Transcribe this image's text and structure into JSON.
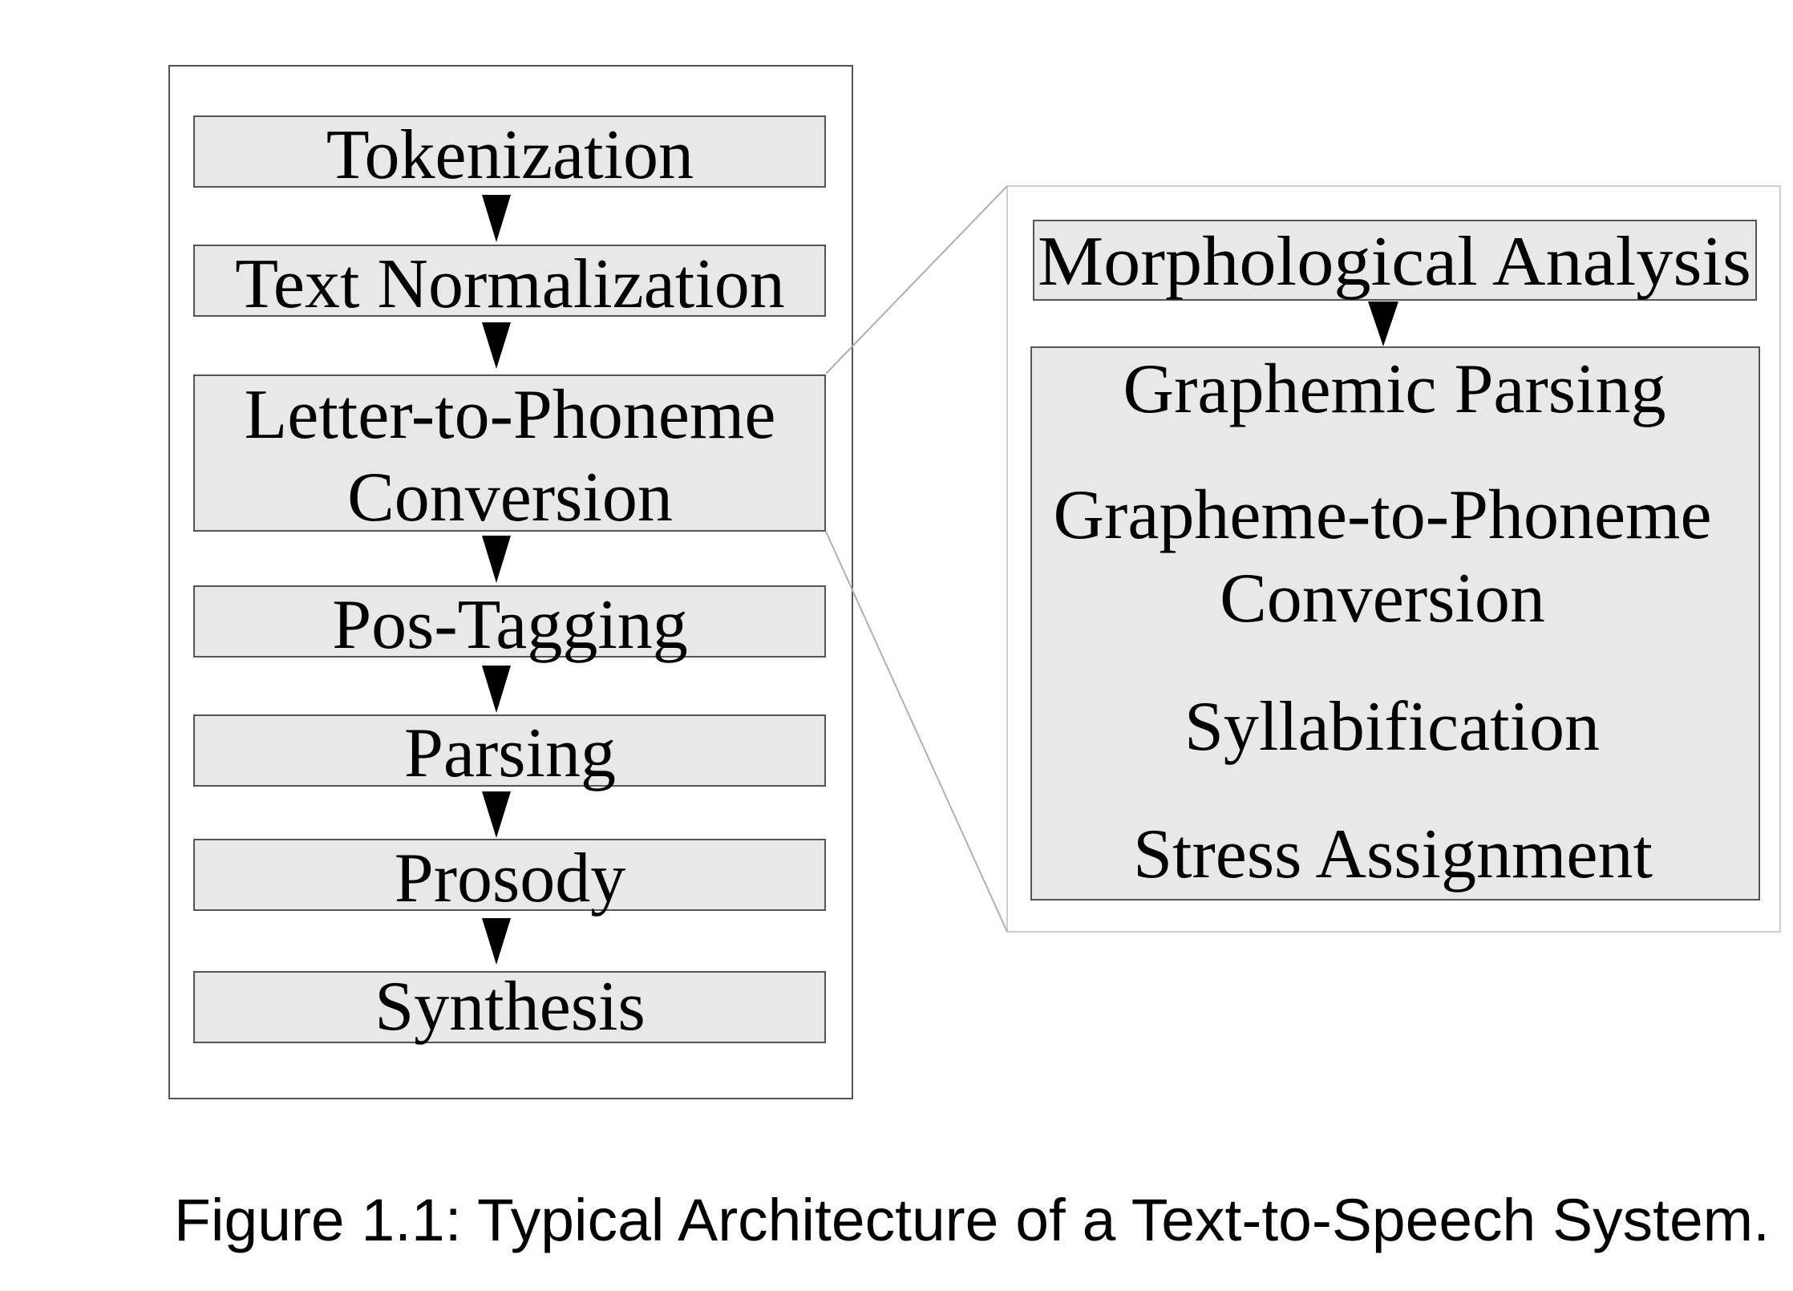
{
  "pipeline": {
    "steps": [
      {
        "lines": [
          "Tokenization"
        ]
      },
      {
        "lines": [
          "Text Normalization"
        ]
      },
      {
        "lines": [
          "Letter-to-Phoneme",
          "Conversion"
        ]
      },
      {
        "lines": [
          "Pos-Tagging"
        ]
      },
      {
        "lines": [
          "Parsing"
        ]
      },
      {
        "lines": [
          "Prosody"
        ]
      },
      {
        "lines": [
          "Synthesis"
        ]
      }
    ]
  },
  "detail": {
    "header": "Morphological Analysis",
    "substeps": [
      {
        "lines": [
          "Graphemic Parsing"
        ]
      },
      {
        "lines": [
          "Grapheme-to-Phoneme",
          "Conversion"
        ]
      },
      {
        "lines": [
          "Syllabification"
        ]
      },
      {
        "lines": [
          "Stress Assignment"
        ]
      }
    ]
  },
  "caption": "Figure 1.1: Typical Architecture of a Text-to-Speech System.",
  "colors": {
    "box_fill": "#e8e8e8",
    "box_stroke": "#555555",
    "frame_stroke": "#555555",
    "zoom_line": "#b0b0b0",
    "arrow": "#000000"
  }
}
